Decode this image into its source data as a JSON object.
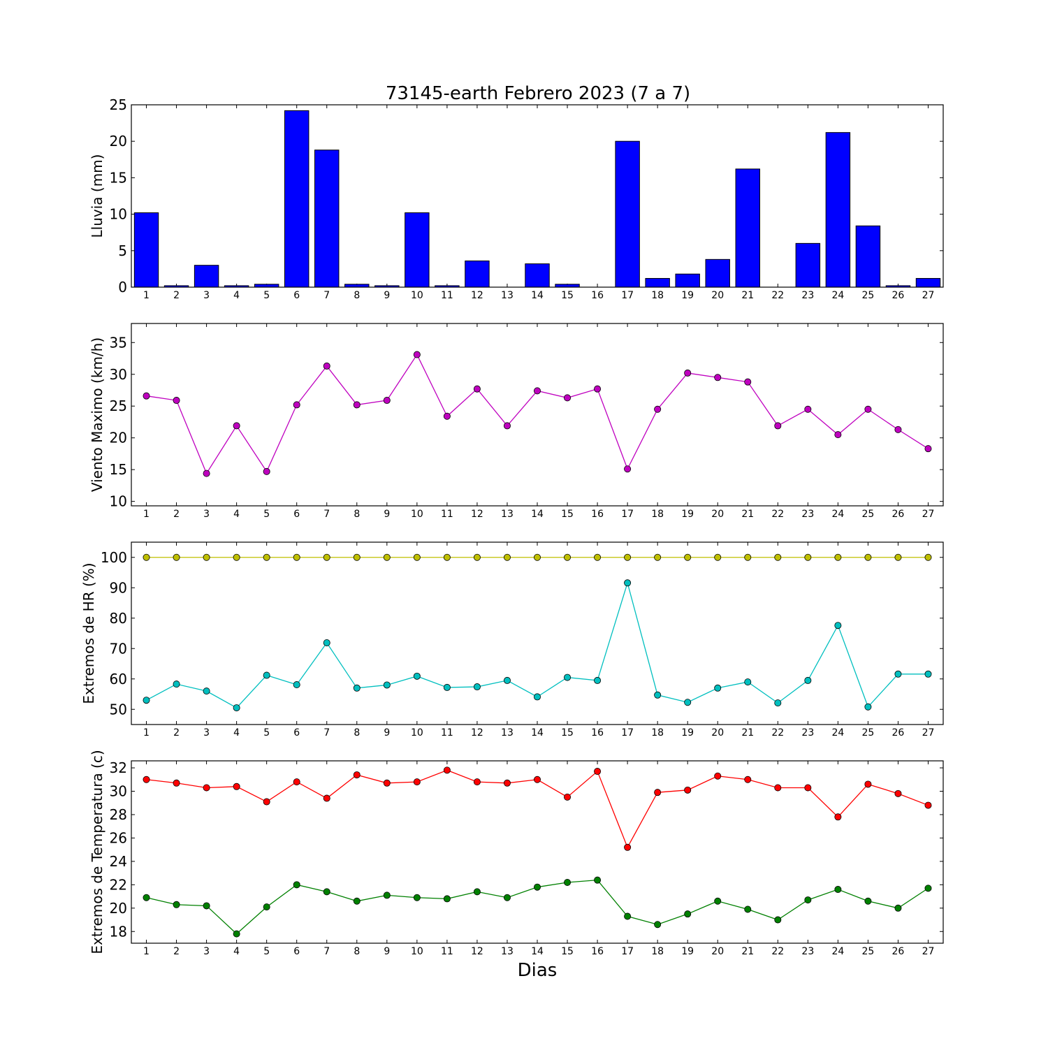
{
  "title": "73145-earth Febrero 2023  (7 a 7)",
  "xlabel": "Dias",
  "chart_data": [
    {
      "type": "bar",
      "ylabel": "Lluvia (mm)",
      "ylim": [
        0,
        25
      ],
      "yticks": [
        0,
        5,
        10,
        15,
        20,
        25
      ],
      "categories": [
        "1",
        "2",
        "3",
        "4",
        "5",
        "6",
        "7",
        "8",
        "9",
        "10",
        "11",
        "12",
        "13",
        "14",
        "15",
        "16",
        "17",
        "18",
        "19",
        "20",
        "21",
        "22",
        "23",
        "24",
        "25",
        "26",
        "27"
      ],
      "series": [
        {
          "color": "#0000ff",
          "values": [
            10.2,
            0.2,
            3.0,
            0.2,
            0.4,
            24.2,
            18.8,
            0.4,
            0.2,
            10.2,
            0.2,
            3.6,
            0.0,
            3.2,
            0.4,
            0.0,
            20.0,
            1.2,
            1.8,
            3.8,
            16.2,
            0.0,
            6.0,
            21.2,
            8.4,
            0.2,
            1.2
          ]
        }
      ]
    },
    {
      "type": "line",
      "ylabel": "Viento Maximo (km/h)",
      "ylim": [
        9.3,
        38
      ],
      "yticks": [
        10,
        15,
        20,
        25,
        30,
        35
      ],
      "categories": [
        "1",
        "2",
        "3",
        "4",
        "5",
        "6",
        "7",
        "8",
        "9",
        "10",
        "11",
        "12",
        "13",
        "14",
        "15",
        "16",
        "17",
        "18",
        "19",
        "20",
        "21",
        "22",
        "23",
        "24",
        "25",
        "26",
        "27"
      ],
      "series": [
        {
          "color": "#bf00bf",
          "values": [
            26.6,
            25.9,
            14.4,
            21.9,
            14.7,
            25.2,
            31.3,
            25.2,
            25.9,
            33.1,
            23.4,
            27.7,
            21.9,
            27.4,
            26.3,
            27.7,
            15.1,
            24.5,
            30.2,
            29.5,
            28.8,
            21.9,
            24.5,
            20.5,
            24.5,
            21.3,
            18.3
          ]
        }
      ]
    },
    {
      "type": "line",
      "ylabel": "Extremos de HR (%)",
      "ylim": [
        45,
        105
      ],
      "yticks": [
        50,
        60,
        70,
        80,
        90,
        100
      ],
      "categories": [
        "1",
        "2",
        "3",
        "4",
        "5",
        "6",
        "7",
        "8",
        "9",
        "10",
        "11",
        "12",
        "13",
        "14",
        "15",
        "16",
        "17",
        "18",
        "19",
        "20",
        "21",
        "22",
        "23",
        "24",
        "25",
        "26",
        "27"
      ],
      "series": [
        {
          "color": "#bfbf00",
          "values": [
            100,
            100,
            100,
            100,
            100,
            100,
            100,
            100,
            100,
            100,
            100,
            100,
            100,
            100,
            100,
            100,
            100,
            100,
            100,
            100,
            100,
            100,
            100,
            100,
            100,
            100,
            100
          ]
        },
        {
          "color": "#00bfbf",
          "values": [
            53,
            58.3,
            56,
            50.5,
            61.2,
            58.1,
            71.9,
            57,
            58,
            60.9,
            57.2,
            57.4,
            59.5,
            54.1,
            60.5,
            59.5,
            91.6,
            54.7,
            52.3,
            57,
            59,
            52.1,
            59.5,
            77.6,
            50.8,
            61.6,
            61.6
          ]
        }
      ]
    },
    {
      "type": "line",
      "ylabel": "Extremos de Temperatura (c)",
      "ylim": [
        17,
        32.6
      ],
      "yticks": [
        18,
        20,
        22,
        24,
        26,
        28,
        30,
        32
      ],
      "categories": [
        "1",
        "2",
        "3",
        "4",
        "5",
        "6",
        "7",
        "8",
        "9",
        "10",
        "11",
        "12",
        "13",
        "14",
        "15",
        "16",
        "17",
        "18",
        "19",
        "20",
        "21",
        "22",
        "23",
        "24",
        "25",
        "26",
        "27"
      ],
      "series": [
        {
          "color": "#ff0000",
          "values": [
            31.0,
            30.7,
            30.3,
            30.4,
            29.1,
            30.8,
            29.4,
            31.4,
            30.7,
            30.8,
            31.8,
            30.8,
            30.7,
            31.0,
            29.5,
            31.7,
            25.2,
            29.9,
            30.1,
            31.3,
            31.0,
            30.3,
            30.3,
            27.8,
            30.6,
            29.8,
            28.8
          ]
        },
        {
          "color": "#008000",
          "values": [
            20.9,
            20.3,
            20.2,
            17.8,
            20.1,
            22.0,
            21.4,
            20.6,
            21.1,
            20.9,
            20.8,
            21.4,
            20.9,
            21.8,
            22.2,
            22.4,
            19.3,
            18.6,
            19.5,
            20.6,
            19.9,
            19.0,
            20.7,
            21.6,
            20.6,
            20.0,
            21.7
          ]
        }
      ]
    }
  ]
}
